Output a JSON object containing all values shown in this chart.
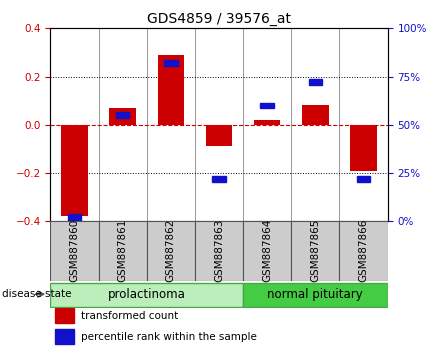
{
  "title": "GDS4859 / 39576_at",
  "samples": [
    "GSM887860",
    "GSM887861",
    "GSM887862",
    "GSM887863",
    "GSM887864",
    "GSM887865",
    "GSM887866"
  ],
  "red_values": [
    -0.38,
    0.07,
    0.29,
    -0.09,
    0.02,
    0.08,
    -0.19
  ],
  "blue_values": [
    2,
    55,
    82,
    22,
    60,
    72,
    22
  ],
  "ylim_left": [
    -0.4,
    0.4
  ],
  "ylim_right": [
    0,
    100
  ],
  "yticks_left": [
    -0.4,
    -0.2,
    0.0,
    0.2,
    0.4
  ],
  "yticks_right": [
    0,
    25,
    50,
    75,
    100
  ],
  "red_color": "#cc0000",
  "blue_color": "#1111cc",
  "bar_width": 0.55,
  "groups": [
    {
      "label": "prolactinoma",
      "samples": [
        0,
        1,
        2,
        3
      ],
      "facecolor": "#bbeebb",
      "edgecolor": "#44aa44"
    },
    {
      "label": "normal pituitary",
      "samples": [
        4,
        5,
        6
      ],
      "facecolor": "#44cc44",
      "edgecolor": "#44aa44"
    }
  ],
  "disease_state_label": "disease state",
  "legend_items": [
    {
      "color": "#cc0000",
      "label": "transformed count"
    },
    {
      "color": "#1111cc",
      "label": "percentile rank within the sample"
    }
  ],
  "tick_label_fontsize": 7.5,
  "title_fontsize": 10,
  "group_label_fontsize": 8.5,
  "legend_fontsize": 7.5,
  "axis_color_left": "#cc0000",
  "axis_color_right": "#1111cc",
  "bg_color": "#ffffff",
  "sample_cell_color": "#cccccc",
  "sample_cell_edgecolor": "#555555"
}
